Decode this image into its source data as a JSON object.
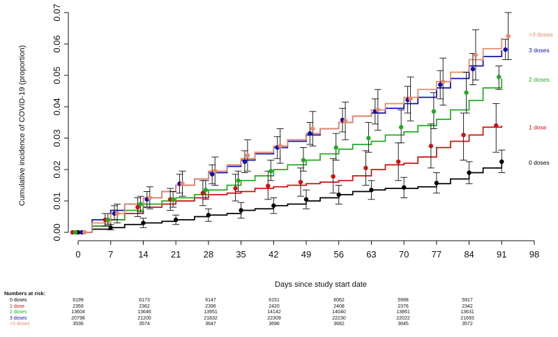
{
  "chart_data": {
    "type": "line",
    "subtype": "step",
    "ylabel": "Cumulative incidence of COVID-19 (proportion)",
    "xlabel": "Days since study start date",
    "xlim": [
      0,
      98
    ],
    "ylim": [
      0,
      0.07
    ],
    "x_ticks": [
      "0",
      "7",
      "14",
      "21",
      "28",
      "35",
      "42",
      "49",
      "56",
      "63",
      "70",
      "77",
      "84",
      "91",
      "98"
    ],
    "y_ticks": [
      "0.00",
      "0.01",
      "0.02",
      "0.03",
      "0.04",
      "0.05",
      "0.06",
      "0.07"
    ],
    "series": [
      {
        "name": "0 doses",
        "label": "0 doses",
        "color": "#000000",
        "x": [
          0,
          3,
          7,
          10,
          14,
          18,
          21,
          25,
          28,
          32,
          35,
          38,
          42,
          45,
          49,
          52,
          56,
          59,
          63,
          66,
          70,
          73,
          77,
          80,
          84,
          87,
          91
        ],
        "y": [
          0.0,
          0.001,
          0.0015,
          0.0025,
          0.003,
          0.0035,
          0.004,
          0.005,
          0.0055,
          0.006,
          0.007,
          0.0075,
          0.0085,
          0.009,
          0.01,
          0.011,
          0.012,
          0.013,
          0.0135,
          0.014,
          0.014,
          0.0145,
          0.0155,
          0.017,
          0.019,
          0.0205,
          0.022
        ],
        "points": [
          {
            "x": 0,
            "y": 0.0,
            "lo": 0.0,
            "hi": 0.0
          },
          {
            "x": 7,
            "y": 0.0015,
            "lo": 0.0008,
            "hi": 0.0025
          },
          {
            "x": 14,
            "y": 0.003,
            "lo": 0.0015,
            "hi": 0.0045
          },
          {
            "x": 21,
            "y": 0.004,
            "lo": 0.0025,
            "hi": 0.0055
          },
          {
            "x": 28,
            "y": 0.0055,
            "lo": 0.0035,
            "hi": 0.0075
          },
          {
            "x": 35,
            "y": 0.007,
            "lo": 0.0045,
            "hi": 0.0095
          },
          {
            "x": 42,
            "y": 0.0085,
            "lo": 0.006,
            "hi": 0.011
          },
          {
            "x": 49,
            "y": 0.0105,
            "lo": 0.0075,
            "hi": 0.0135
          },
          {
            "x": 56,
            "y": 0.012,
            "lo": 0.009,
            "hi": 0.015
          },
          {
            "x": 63,
            "y": 0.0135,
            "lo": 0.0105,
            "hi": 0.0165
          },
          {
            "x": 70,
            "y": 0.0143,
            "lo": 0.011,
            "hi": 0.0175
          },
          {
            "x": 77,
            "y": 0.0157,
            "lo": 0.0125,
            "hi": 0.019
          },
          {
            "x": 84,
            "y": 0.019,
            "lo": 0.0155,
            "hi": 0.0225
          },
          {
            "x": 91,
            "y": 0.0225,
            "lo": 0.019,
            "hi": 0.0262
          }
        ]
      },
      {
        "name": "1 dose",
        "label": "1 dose",
        "color": "#cc1111",
        "x": [
          0,
          3,
          7,
          10,
          14,
          18,
          21,
          25,
          28,
          32,
          35,
          38,
          42,
          45,
          49,
          52,
          56,
          59,
          63,
          66,
          70,
          73,
          77,
          80,
          84,
          87,
          91
        ],
        "y": [
          0.0,
          0.002,
          0.004,
          0.006,
          0.008,
          0.009,
          0.01,
          0.011,
          0.012,
          0.0125,
          0.013,
          0.014,
          0.0145,
          0.015,
          0.0155,
          0.016,
          0.0165,
          0.018,
          0.02,
          0.0215,
          0.022,
          0.024,
          0.027,
          0.029,
          0.031,
          0.0335,
          0.034
        ],
        "points": [
          {
            "x": 0,
            "y": 0.0,
            "lo": 0.0,
            "hi": 0.0
          },
          {
            "x": 7,
            "y": 0.004,
            "lo": 0.002,
            "hi": 0.006
          },
          {
            "x": 14,
            "y": 0.008,
            "lo": 0.005,
            "hi": 0.011
          },
          {
            "x": 21,
            "y": 0.0105,
            "lo": 0.007,
            "hi": 0.014
          },
          {
            "x": 28,
            "y": 0.0125,
            "lo": 0.0085,
            "hi": 0.0165
          },
          {
            "x": 35,
            "y": 0.014,
            "lo": 0.01,
            "hi": 0.0185
          },
          {
            "x": 42,
            "y": 0.0148,
            "lo": 0.0105,
            "hi": 0.0195
          },
          {
            "x": 49,
            "y": 0.016,
            "lo": 0.0115,
            "hi": 0.0205
          },
          {
            "x": 56,
            "y": 0.0178,
            "lo": 0.0125,
            "hi": 0.0235
          },
          {
            "x": 63,
            "y": 0.0205,
            "lo": 0.015,
            "hi": 0.026
          },
          {
            "x": 70,
            "y": 0.0225,
            "lo": 0.0165,
            "hi": 0.0285
          },
          {
            "x": 77,
            "y": 0.0275,
            "lo": 0.0205,
            "hi": 0.0345
          },
          {
            "x": 84,
            "y": 0.031,
            "lo": 0.023,
            "hi": 0.038
          },
          {
            "x": 91,
            "y": 0.034,
            "lo": 0.0255,
            "hi": 0.041
          }
        ]
      },
      {
        "name": "2 doses",
        "label": "2 doses",
        "color": "#22aa22",
        "x": [
          0,
          3,
          7,
          10,
          14,
          18,
          21,
          25,
          28,
          32,
          35,
          38,
          42,
          45,
          49,
          52,
          56,
          59,
          63,
          66,
          70,
          73,
          77,
          80,
          84,
          87,
          91
        ],
        "y": [
          0.0,
          0.002,
          0.004,
          0.007,
          0.009,
          0.01,
          0.011,
          0.012,
          0.0135,
          0.015,
          0.0165,
          0.018,
          0.02,
          0.0215,
          0.023,
          0.025,
          0.0265,
          0.028,
          0.029,
          0.031,
          0.032,
          0.034,
          0.036,
          0.039,
          0.042,
          0.046,
          0.049
        ],
        "points": [
          {
            "x": 0,
            "y": 0.0,
            "lo": 0.0,
            "hi": 0.0
          },
          {
            "x": 7,
            "y": 0.004,
            "lo": 0.0025,
            "hi": 0.006
          },
          {
            "x": 14,
            "y": 0.009,
            "lo": 0.0065,
            "hi": 0.0115
          },
          {
            "x": 21,
            "y": 0.0105,
            "lo": 0.008,
            "hi": 0.013
          },
          {
            "x": 28,
            "y": 0.0135,
            "lo": 0.0105,
            "hi": 0.0165
          },
          {
            "x": 35,
            "y": 0.0165,
            "lo": 0.013,
            "hi": 0.0195
          },
          {
            "x": 42,
            "y": 0.0195,
            "lo": 0.0165,
            "hi": 0.023
          },
          {
            "x": 49,
            "y": 0.023,
            "lo": 0.0195,
            "hi": 0.027
          },
          {
            "x": 56,
            "y": 0.027,
            "lo": 0.023,
            "hi": 0.0315
          },
          {
            "x": 63,
            "y": 0.03,
            "lo": 0.0255,
            "hi": 0.035
          },
          {
            "x": 70,
            "y": 0.0335,
            "lo": 0.0285,
            "hi": 0.039
          },
          {
            "x": 77,
            "y": 0.0385,
            "lo": 0.033,
            "hi": 0.0445
          },
          {
            "x": 84,
            "y": 0.0445,
            "lo": 0.038,
            "hi": 0.051
          },
          {
            "x": 91,
            "y": 0.0495,
            "lo": 0.0455,
            "hi": 0.053
          }
        ]
      },
      {
        "name": "3 doses",
        "label": "3 doses",
        "color": "#1111aa",
        "x": [
          0,
          3,
          7,
          10,
          14,
          18,
          21,
          25,
          28,
          32,
          35,
          38,
          42,
          45,
          49,
          52,
          56,
          59,
          63,
          66,
          70,
          73,
          77,
          80,
          84,
          87,
          91
        ],
        "y": [
          0.0,
          0.004,
          0.007,
          0.009,
          0.011,
          0.013,
          0.015,
          0.017,
          0.019,
          0.021,
          0.023,
          0.025,
          0.027,
          0.029,
          0.031,
          0.033,
          0.035,
          0.037,
          0.038,
          0.0395,
          0.041,
          0.043,
          0.046,
          0.049,
          0.053,
          0.056,
          0.058
        ],
        "points": [
          {
            "x": 0,
            "y": 0.0,
            "lo": 0.0,
            "hi": 0.0
          },
          {
            "x": 7,
            "y": 0.006,
            "lo": 0.004,
            "hi": 0.0085
          },
          {
            "x": 14,
            "y": 0.0105,
            "lo": 0.008,
            "hi": 0.013
          },
          {
            "x": 21,
            "y": 0.0155,
            "lo": 0.0125,
            "hi": 0.0185
          },
          {
            "x": 28,
            "y": 0.0185,
            "lo": 0.0155,
            "hi": 0.0215
          },
          {
            "x": 35,
            "y": 0.0225,
            "lo": 0.019,
            "hi": 0.026
          },
          {
            "x": 42,
            "y": 0.027,
            "lo": 0.0235,
            "hi": 0.0305
          },
          {
            "x": 49,
            "y": 0.0315,
            "lo": 0.028,
            "hi": 0.035
          },
          {
            "x": 56,
            "y": 0.0358,
            "lo": 0.032,
            "hi": 0.0395
          },
          {
            "x": 63,
            "y": 0.0385,
            "lo": 0.0345,
            "hi": 0.0425
          },
          {
            "x": 70,
            "y": 0.0422,
            "lo": 0.038,
            "hi": 0.0465
          },
          {
            "x": 77,
            "y": 0.047,
            "lo": 0.0425,
            "hi": 0.0515
          },
          {
            "x": 84,
            "y": 0.052,
            "lo": 0.047,
            "hi": 0.057
          },
          {
            "x": 91,
            "y": 0.0582,
            "lo": 0.055,
            "hi": 0.0615
          }
        ]
      },
      {
        "name": ">3 doses",
        "label": ">3 doses",
        "color": "#e8896a",
        "x": [
          0,
          3,
          7,
          10,
          14,
          18,
          21,
          25,
          28,
          32,
          35,
          38,
          42,
          45,
          49,
          52,
          56,
          59,
          63,
          66,
          70,
          73,
          77,
          80,
          84,
          87,
          91
        ],
        "y": [
          0.0,
          0.003,
          0.006,
          0.009,
          0.011,
          0.013,
          0.015,
          0.017,
          0.0195,
          0.0215,
          0.0235,
          0.0255,
          0.0275,
          0.0295,
          0.0315,
          0.033,
          0.035,
          0.037,
          0.039,
          0.041,
          0.043,
          0.0455,
          0.048,
          0.051,
          0.055,
          0.0585,
          0.062
        ],
        "points": [
          {
            "x": 0,
            "y": 0.0,
            "lo": 0.0,
            "hi": 0.0
          },
          {
            "x": 7,
            "y": 0.006,
            "lo": 0.003,
            "hi": 0.009
          },
          {
            "x": 14,
            "y": 0.011,
            "lo": 0.0075,
            "hi": 0.0145
          },
          {
            "x": 21,
            "y": 0.0155,
            "lo": 0.0115,
            "hi": 0.0195
          },
          {
            "x": 28,
            "y": 0.0195,
            "lo": 0.015,
            "hi": 0.024
          },
          {
            "x": 35,
            "y": 0.0245,
            "lo": 0.0195,
            "hi": 0.0295
          },
          {
            "x": 42,
            "y": 0.0275,
            "lo": 0.022,
            "hi": 0.033
          },
          {
            "x": 49,
            "y": 0.033,
            "lo": 0.0275,
            "hi": 0.0385
          },
          {
            "x": 56,
            "y": 0.0355,
            "lo": 0.0295,
            "hi": 0.0415
          },
          {
            "x": 63,
            "y": 0.039,
            "lo": 0.0325,
            "hi": 0.0455
          },
          {
            "x": 70,
            "y": 0.0425,
            "lo": 0.0355,
            "hi": 0.0495
          },
          {
            "x": 77,
            "y": 0.048,
            "lo": 0.0405,
            "hi": 0.0555
          },
          {
            "x": 84,
            "y": 0.0565,
            "lo": 0.0485,
            "hi": 0.0645
          },
          {
            "x": 91,
            "y": 0.0625,
            "lo": 0.055,
            "hi": 0.07
          }
        ]
      }
    ]
  },
  "risk_table": {
    "title": "Numbers at risk:",
    "rows": [
      {
        "name": "0 doses",
        "color": "#000000",
        "values": [
          "6199",
          "6173",
          "6147",
          "6151",
          "6062",
          "5998",
          "5917"
        ]
      },
      {
        "name": "1 dose",
        "color": "#cc1111",
        "values": [
          "2359",
          "2362",
          "2396",
          "2420",
          "2408",
          "2376",
          "2342"
        ]
      },
      {
        "name": "2 doses",
        "color": "#22aa22",
        "values": [
          "13604",
          "13646",
          "13951",
          "14142",
          "14040",
          "13861",
          "13631"
        ]
      },
      {
        "name": "3 doses",
        "color": "#1111aa",
        "values": [
          "20798",
          "21200",
          "21832",
          "22309",
          "22230",
          "22022",
          "21693"
        ]
      },
      {
        "name": ">3 doses",
        "color": "#e8896a",
        "values": [
          "3536",
          "3574",
          "3647",
          "3696",
          "3682",
          "3645",
          "3572"
        ]
      }
    ]
  }
}
